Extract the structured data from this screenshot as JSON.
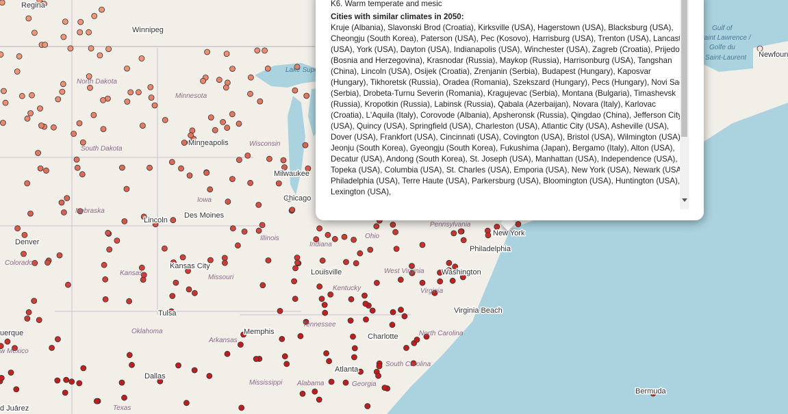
{
  "map_labels": [
    {
      "text": "Regina",
      "kind": "city"
    },
    {
      "text": "Winnipeg",
      "kind": "city"
    },
    {
      "text": "Lake Superior",
      "kind": "water"
    },
    {
      "text": "Gulf of",
      "kind": "water"
    },
    {
      "text": "Saint Lawrence /",
      "kind": "water"
    },
    {
      "text": "Golfe du",
      "kind": "water"
    },
    {
      "text": "Saint-Laurent",
      "kind": "water"
    },
    {
      "text": "Newfounc",
      "kind": "city"
    },
    {
      "text": "North Dakota",
      "kind": "state"
    },
    {
      "text": "Minnesota",
      "kind": "state"
    },
    {
      "text": "South Dakota",
      "kind": "state"
    },
    {
      "text": "Minneapolis",
      "kind": "city"
    },
    {
      "text": "Wisconsin",
      "kind": "state"
    },
    {
      "text": "Milwaukee",
      "kind": "city"
    },
    {
      "text": "Nebraska",
      "kind": "state"
    },
    {
      "text": "Iowa",
      "kind": "state"
    },
    {
      "text": "Chicago",
      "kind": "city"
    },
    {
      "text": "Lincoln",
      "kind": "city"
    },
    {
      "text": "Des Moines",
      "kind": "city"
    },
    {
      "text": "Denver",
      "kind": "city"
    },
    {
      "text": "Colorado",
      "kind": "state"
    },
    {
      "text": "Illinois",
      "kind": "state"
    },
    {
      "text": "Indiana",
      "kind": "state"
    },
    {
      "text": "Ohio",
      "kind": "state"
    },
    {
      "text": "Pennsylvania",
      "kind": "state"
    },
    {
      "text": "New York",
      "kind": "city"
    },
    {
      "text": "Philadelphia",
      "kind": "city"
    },
    {
      "text": "Kansas City",
      "kind": "city"
    },
    {
      "text": "Kansas",
      "kind": "state"
    },
    {
      "text": "Missouri",
      "kind": "state"
    },
    {
      "text": "Louisville",
      "kind": "city"
    },
    {
      "text": "West Virginia",
      "kind": "state"
    },
    {
      "text": "Washington",
      "kind": "city"
    },
    {
      "text": "Kentucky",
      "kind": "state"
    },
    {
      "text": "Virginia",
      "kind": "state"
    },
    {
      "text": "Virginia Beach",
      "kind": "city"
    },
    {
      "text": "Tulsa",
      "kind": "city"
    },
    {
      "text": "Oklahoma",
      "kind": "state"
    },
    {
      "text": "Arkansas",
      "kind": "state"
    },
    {
      "text": "Memphis",
      "kind": "city"
    },
    {
      "text": "Tennessee",
      "kind": "state"
    },
    {
      "text": "Charlotte",
      "kind": "city"
    },
    {
      "text": "North Carolina",
      "kind": "state"
    },
    {
      "text": "South Carolina",
      "kind": "state"
    },
    {
      "text": "Atlanta",
      "kind": "city"
    },
    {
      "text": "Georgia",
      "kind": "state"
    },
    {
      "text": "Mississippi",
      "kind": "state"
    },
    {
      "text": "Alabama",
      "kind": "state"
    },
    {
      "text": "Dallas",
      "kind": "city"
    },
    {
      "text": "Texas",
      "kind": "state"
    },
    {
      "text": "Bermuda",
      "kind": "city"
    },
    {
      "text": "uerque",
      "kind": "city"
    },
    {
      "text": "w Mexico",
      "kind": "state"
    },
    {
      "text": "d Juárez",
      "kind": "city"
    }
  ],
  "popup": {
    "heading": "K6. Warm temperate and mesic",
    "subheading": "Cities with similar climates in 2050:",
    "cities": "Kruje (Albania), Slavonski Brod (Croatia), Kirksville (USA), Hagerstown (USA), Blacksburg (USA), Cheongju (South Korea), Paterson (USA), Pec (Kosovo), Harrisburg (USA), Trenton (USA), Lancaster (USA), York (USA), Dayton (USA), Indianapolis (USA), Winchester (USA), Zagreb (Croatia), Prijedor (Bosnia and Herzegovina), Krasnodar (Russia), Maykop (Russia), Harrisonburg (USA), Tangshan (China), Lincoln (USA), Osijek (Croatia), Zrenjanin (Serbia), Budapest (Hungary), Kaposvar (Hungary), Tikhoretsk (Russia), Oradea (Romania), Szekszard (Hungary), Pecs (Hungary), Novi Sad (Serbia), Drobeta-Turnu Severin (Romania), Kragujevac (Serbia), Montana (Bulgaria), Timashevsk (Russia), Kropotkin (Russia), Labinsk (Russia), Qabala (Azerbaijan), Novara (Italy), Karlovac (Croatia), L'Aquila (Italy), Corovode (Albania), Apsheronsk (Russia), Qingdao (China), Jefferson City (USA), Quincy (USA), Springfield (USA), Charleston (USA), Atlantic City (USA), Asheville (USA), Dover (USA), Frankfort (USA), Cincinnati (USA), Covington (USA), Bristol (USA), Wilmington (USA), Jeonju (South Korea), Gyeongju (South Korea), Fukushima (Japan), Bergamo (Italy), Alton (USA), Decatur (USA), Andong (South Korea), St. Joseph (USA), Manhattan (USA), Independence (USA), Topeka (USA), Columbia (USA), St. Charles (USA), Emporia (USA), New York (USA), Newark (USA), Philadelphia (USA), Terre Haute (USA), Parkersburg (USA), Bloomington (USA), Huntington (USA), Lexington (USA),"
  }
}
